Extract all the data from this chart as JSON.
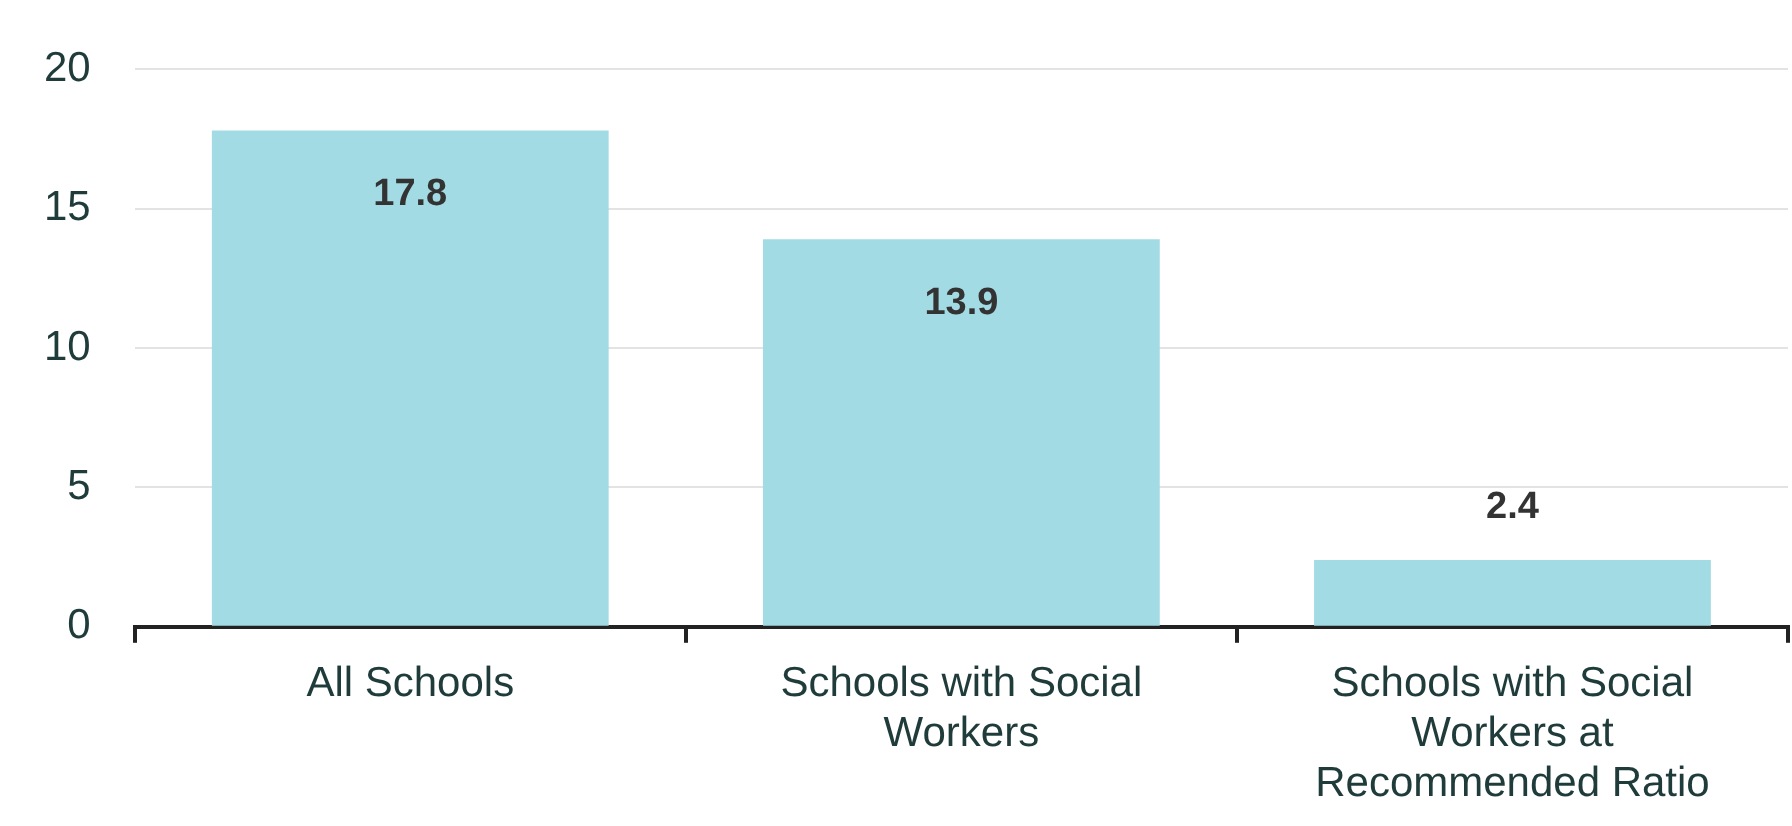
{
  "chart_data": {
    "type": "bar",
    "categories": [
      "All Schools",
      "Schools with Social Workers",
      "Schools with Social Workers at Recommended Ratio"
    ],
    "values": [
      17.8,
      13.9,
      2.4
    ],
    "color": "#a2dbe3",
    "ylim": [
      0,
      20
    ],
    "yticks": [
      0,
      5,
      10,
      15,
      20
    ],
    "grid": "y",
    "data_labels": true,
    "legend": false
  }
}
